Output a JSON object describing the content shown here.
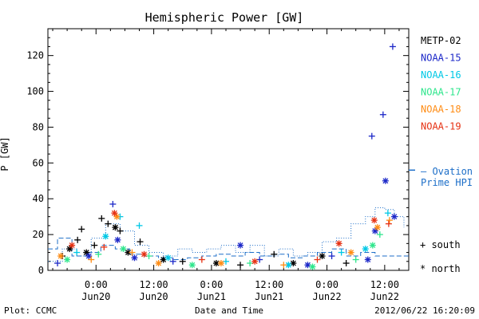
{
  "chart_data": {
    "type": "scatter",
    "title": "Hemispheric Power [GW]",
    "ylabel": "P [GW]",
    "xlabel": "Date and Time",
    "ylim": [
      0,
      135
    ],
    "xlim": [
      "2012-06-19 14:00",
      "2012-06-22 17:00"
    ],
    "grid": false,
    "legend_position": "right",
    "y_ticks": [
      0,
      20,
      40,
      60,
      80,
      100,
      120
    ],
    "x_ticks": [
      {
        "at": "2012-06-20 00:00",
        "label": "0:00",
        "sublabel": "Jun20"
      },
      {
        "at": "2012-06-20 12:00",
        "label": "12:00",
        "sublabel": "Jun20"
      },
      {
        "at": "2012-06-21 00:00",
        "label": "0:00",
        "sublabel": "Jun21"
      },
      {
        "at": "2012-06-21 12:00",
        "label": "12:00",
        "sublabel": "Jun21"
      },
      {
        "at": "2012-06-22 00:00",
        "label": "0:00",
        "sublabel": "Jun22"
      },
      {
        "at": "2012-06-22 12:00",
        "label": "12:00",
        "sublabel": "Jun22"
      }
    ],
    "marker_legend": [
      {
        "symbol": "+",
        "label": "south"
      },
      {
        "symbol": "*",
        "label": "north"
      }
    ],
    "series": [
      {
        "name": "METP-02",
        "color": "#000000",
        "points": [
          {
            "x": "2012-06-19 17:00",
            "y": 8,
            "m": "+"
          },
          {
            "x": "2012-06-19 18:30",
            "y": 12,
            "m": "*"
          },
          {
            "x": "2012-06-19 20:10",
            "y": 17,
            "m": "+"
          },
          {
            "x": "2012-06-19 21:00",
            "y": 23,
            "m": "+"
          },
          {
            "x": "2012-06-19 22:00",
            "y": 10,
            "m": "*"
          },
          {
            "x": "2012-06-19 23:40",
            "y": 14,
            "m": "+"
          },
          {
            "x": "2012-06-20 01:10",
            "y": 29,
            "m": "+"
          },
          {
            "x": "2012-06-20 02:30",
            "y": 26,
            "m": "+"
          },
          {
            "x": "2012-06-20 04:00",
            "y": 24,
            "m": "*"
          },
          {
            "x": "2012-06-20 05:00",
            "y": 22,
            "m": "+"
          },
          {
            "x": "2012-06-20 06:40",
            "y": 10,
            "m": "*"
          },
          {
            "x": "2012-06-20 09:10",
            "y": 16,
            "m": "+"
          },
          {
            "x": "2012-06-20 14:00",
            "y": 6,
            "m": "*"
          },
          {
            "x": "2012-06-20 18:00",
            "y": 5,
            "m": "+"
          },
          {
            "x": "2012-06-21 01:00",
            "y": 4,
            "m": "*"
          },
          {
            "x": "2012-06-21 06:00",
            "y": 3,
            "m": "+"
          },
          {
            "x": "2012-06-21 13:00",
            "y": 9,
            "m": "+"
          },
          {
            "x": "2012-06-21 17:00",
            "y": 4,
            "m": "*"
          },
          {
            "x": "2012-06-21 23:00",
            "y": 8,
            "m": "*"
          },
          {
            "x": "2012-06-22 04:00",
            "y": 4,
            "m": "+"
          }
        ]
      },
      {
        "name": "NOAA-15",
        "color": "#1c28c8",
        "points": [
          {
            "x": "2012-06-19 16:00",
            "y": 4,
            "m": "+"
          },
          {
            "x": "2012-06-19 22:30",
            "y": 8,
            "m": "*"
          },
          {
            "x": "2012-06-20 03:30",
            "y": 37,
            "m": "+"
          },
          {
            "x": "2012-06-20 04:30",
            "y": 17,
            "m": "*"
          },
          {
            "x": "2012-06-20 08:00",
            "y": 7,
            "m": "*"
          },
          {
            "x": "2012-06-20 16:00",
            "y": 5,
            "m": "+"
          },
          {
            "x": "2012-06-21 06:00",
            "y": 14,
            "m": "*"
          },
          {
            "x": "2012-06-21 10:00",
            "y": 6,
            "m": "+"
          },
          {
            "x": "2012-06-21 20:00",
            "y": 3,
            "m": "*"
          },
          {
            "x": "2012-06-22 01:00",
            "y": 8,
            "m": "+"
          },
          {
            "x": "2012-06-22 08:30",
            "y": 6,
            "m": "*"
          },
          {
            "x": "2012-06-22 09:20",
            "y": 75,
            "m": "+"
          },
          {
            "x": "2012-06-22 10:00",
            "y": 22,
            "m": "*"
          },
          {
            "x": "2012-06-22 11:40",
            "y": 87,
            "m": "+"
          },
          {
            "x": "2012-06-22 12:10",
            "y": 50,
            "m": "*"
          },
          {
            "x": "2012-06-22 13:40",
            "y": 125,
            "m": "+"
          },
          {
            "x": "2012-06-22 14:00",
            "y": 30,
            "m": "*"
          }
        ]
      },
      {
        "name": "NOAA-16",
        "color": "#00c8e6",
        "points": [
          {
            "x": "2012-06-19 20:00",
            "y": 10,
            "m": "+"
          },
          {
            "x": "2012-06-20 02:00",
            "y": 19,
            "m": "*"
          },
          {
            "x": "2012-06-20 05:00",
            "y": 30,
            "m": "+"
          },
          {
            "x": "2012-06-20 09:00",
            "y": 25,
            "m": "+"
          },
          {
            "x": "2012-06-20 15:00",
            "y": 7,
            "m": "*"
          },
          {
            "x": "2012-06-21 03:00",
            "y": 5,
            "m": "+"
          },
          {
            "x": "2012-06-21 16:00",
            "y": 3,
            "m": "*"
          },
          {
            "x": "2012-06-22 03:00",
            "y": 10,
            "m": "+"
          },
          {
            "x": "2012-06-22 08:00",
            "y": 12,
            "m": "*"
          },
          {
            "x": "2012-06-22 12:40",
            "y": 32,
            "m": "+"
          }
        ]
      },
      {
        "name": "NOAA-17",
        "color": "#2ee68c",
        "points": [
          {
            "x": "2012-06-19 18:00",
            "y": 6,
            "m": "*"
          },
          {
            "x": "2012-06-20 00:30",
            "y": 9,
            "m": "+"
          },
          {
            "x": "2012-06-20 05:40",
            "y": 12,
            "m": "*"
          },
          {
            "x": "2012-06-20 11:00",
            "y": 8,
            "m": "+"
          },
          {
            "x": "2012-06-20 20:00",
            "y": 3,
            "m": "*"
          },
          {
            "x": "2012-06-21 08:00",
            "y": 4,
            "m": "+"
          },
          {
            "x": "2012-06-21 21:00",
            "y": 2,
            "m": "*"
          },
          {
            "x": "2012-06-22 06:00",
            "y": 6,
            "m": "+"
          },
          {
            "x": "2012-06-22 09:30",
            "y": 14,
            "m": "*"
          },
          {
            "x": "2012-06-22 11:00",
            "y": 20,
            "m": "+"
          }
        ]
      },
      {
        "name": "NOAA-18",
        "color": "#ff8c14",
        "points": [
          {
            "x": "2012-06-19 16:40",
            "y": 8,
            "m": "*"
          },
          {
            "x": "2012-06-19 23:00",
            "y": 6,
            "m": "+"
          },
          {
            "x": "2012-06-20 04:20",
            "y": 30,
            "m": "*"
          },
          {
            "x": "2012-06-20 07:30",
            "y": 10,
            "m": "+"
          },
          {
            "x": "2012-06-20 13:00",
            "y": 4,
            "m": "*"
          },
          {
            "x": "2012-06-21 02:00",
            "y": 4,
            "m": "*"
          },
          {
            "x": "2012-06-21 15:00",
            "y": 3,
            "m": "+"
          },
          {
            "x": "2012-06-22 05:00",
            "y": 10,
            "m": "*"
          },
          {
            "x": "2012-06-22 10:30",
            "y": 24,
            "m": "*"
          },
          {
            "x": "2012-06-22 13:00",
            "y": 28,
            "m": "+"
          }
        ]
      },
      {
        "name": "NOAA-19",
        "color": "#e63214",
        "points": [
          {
            "x": "2012-06-19 19:00",
            "y": 14,
            "m": "*"
          },
          {
            "x": "2012-06-20 01:40",
            "y": 13,
            "m": "+"
          },
          {
            "x": "2012-06-20 03:50",
            "y": 32,
            "m": "*"
          },
          {
            "x": "2012-06-20 10:00",
            "y": 9,
            "m": "*"
          },
          {
            "x": "2012-06-20 22:00",
            "y": 6,
            "m": "+"
          },
          {
            "x": "2012-06-21 09:00",
            "y": 5,
            "m": "*"
          },
          {
            "x": "2012-06-21 22:00",
            "y": 6,
            "m": "+"
          },
          {
            "x": "2012-06-22 02:30",
            "y": 15,
            "m": "*"
          },
          {
            "x": "2012-06-22 09:50",
            "y": 28,
            "m": "*"
          },
          {
            "x": "2012-06-22 12:50",
            "y": 26,
            "m": "+"
          }
        ]
      }
    ],
    "model": {
      "name": "Ovation Prime HPI",
      "legend_label_line1": "— Ovation",
      "legend_label_line2": "Prime HPI",
      "color": "#1c6ec8",
      "right_axis_marker": 56,
      "solid": [
        {
          "x": "2012-06-19 14:00",
          "y": 12
        },
        {
          "x": "2012-06-19 16:00",
          "y": 18
        },
        {
          "x": "2012-06-19 19:00",
          "y": 8
        },
        {
          "x": "2012-06-19 22:00",
          "y": 10
        },
        {
          "x": "2012-06-20 01:00",
          "y": 14
        },
        {
          "x": "2012-06-20 04:00",
          "y": 12
        },
        {
          "x": "2012-06-20 07:00",
          "y": 9
        },
        {
          "x": "2012-06-20 10:00",
          "y": 8
        },
        {
          "x": "2012-06-20 13:00",
          "y": 7
        },
        {
          "x": "2012-06-20 16:00",
          "y": 6
        },
        {
          "x": "2012-06-20 19:00",
          "y": 7
        },
        {
          "x": "2012-06-20 22:00",
          "y": 8
        },
        {
          "x": "2012-06-21 01:00",
          "y": 9
        },
        {
          "x": "2012-06-21 04:00",
          "y": 8
        },
        {
          "x": "2012-06-21 07:00",
          "y": 10
        },
        {
          "x": "2012-06-21 10:00",
          "y": 8
        },
        {
          "x": "2012-06-21 13:00",
          "y": 9
        },
        {
          "x": "2012-06-21 16:00",
          "y": 7
        },
        {
          "x": "2012-06-21 19:00",
          "y": 8
        },
        {
          "x": "2012-06-21 22:00",
          "y": 10
        },
        {
          "x": "2012-06-22 01:00",
          "y": 12
        },
        {
          "x": "2012-06-22 04:00",
          "y": 8
        },
        {
          "x": "2012-06-22 07:00",
          "y": 10
        },
        {
          "x": "2012-06-22 10:00",
          "y": 8
        },
        {
          "x": "2012-06-22 13:00",
          "y": 8
        },
        {
          "x": "2012-06-22 17:00",
          "y": 8
        }
      ],
      "dotted": [
        {
          "x": "2012-06-19 14:00",
          "y": 5
        },
        {
          "x": "2012-06-19 17:00",
          "y": 12
        },
        {
          "x": "2012-06-19 20:00",
          "y": 8
        },
        {
          "x": "2012-06-19 23:00",
          "y": 18
        },
        {
          "x": "2012-06-20 02:00",
          "y": 26
        },
        {
          "x": "2012-06-20 05:00",
          "y": 22
        },
        {
          "x": "2012-06-20 08:00",
          "y": 14
        },
        {
          "x": "2012-06-20 11:00",
          "y": 10
        },
        {
          "x": "2012-06-20 14:00",
          "y": 8
        },
        {
          "x": "2012-06-20 17:00",
          "y": 12
        },
        {
          "x": "2012-06-20 20:00",
          "y": 10
        },
        {
          "x": "2012-06-20 23:00",
          "y": 12
        },
        {
          "x": "2012-06-21 02:00",
          "y": 14
        },
        {
          "x": "2012-06-21 05:00",
          "y": 10
        },
        {
          "x": "2012-06-21 08:00",
          "y": 14
        },
        {
          "x": "2012-06-21 11:00",
          "y": 8
        },
        {
          "x": "2012-06-21 14:00",
          "y": 12
        },
        {
          "x": "2012-06-21 17:00",
          "y": 8
        },
        {
          "x": "2012-06-21 20:00",
          "y": 10
        },
        {
          "x": "2012-06-21 23:00",
          "y": 16
        },
        {
          "x": "2012-06-22 02:00",
          "y": 18
        },
        {
          "x": "2012-06-22 05:00",
          "y": 26
        },
        {
          "x": "2012-06-22 08:00",
          "y": 30
        },
        {
          "x": "2012-06-22 10:00",
          "y": 35
        },
        {
          "x": "2012-06-22 12:00",
          "y": 34
        },
        {
          "x": "2012-06-22 14:00",
          "y": 30
        },
        {
          "x": "2012-06-22 16:00",
          "y": 24
        }
      ]
    }
  },
  "footer": {
    "left": "Plot: CCMC",
    "center": "Date and Time",
    "right": "2012/06/22 16:20:09"
  }
}
